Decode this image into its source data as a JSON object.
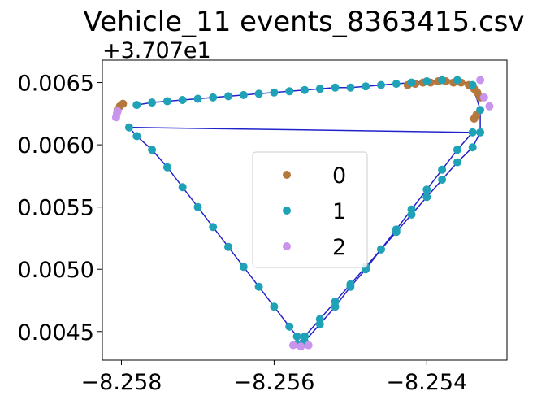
{
  "chart_data": {
    "type": "scatter",
    "title": "Vehicle_11 events_8363415.csv",
    "y_offset_label": "+3.707e1",
    "xlim": [
      -8.25825,
      -8.25295
    ],
    "ylim": [
      0.00427,
      0.00668
    ],
    "x_ticks": [
      {
        "value": -8.258,
        "label": "−8.258"
      },
      {
        "value": -8.256,
        "label": "−8.256"
      },
      {
        "value": -8.254,
        "label": "−8.254"
      }
    ],
    "y_ticks": [
      {
        "value": 0.0045,
        "label": "0.0045"
      },
      {
        "value": 0.005,
        "label": "0.0050"
      },
      {
        "value": 0.0055,
        "label": "0.0055"
      },
      {
        "value": 0.006,
        "label": "0.0060"
      },
      {
        "value": 0.0065,
        "label": "0.0065"
      }
    ],
    "legend": {
      "placement": "center",
      "entries": [
        "0",
        "1",
        "2"
      ]
    },
    "grid": false,
    "track_color": "#2222cc",
    "series": [
      {
        "name": "0",
        "color": "#b5783c",
        "points": [
          [
            -8.25805,
            0.00628
          ],
          [
            -8.25802,
            0.00631
          ],
          [
            -8.25798,
            0.00633
          ],
          [
            -8.25425,
            0.00648
          ],
          [
            -8.25415,
            0.00649
          ],
          [
            -8.25405,
            0.0065
          ],
          [
            -8.25395,
            0.0065
          ],
          [
            -8.25385,
            0.00651
          ],
          [
            -8.25375,
            0.00651
          ],
          [
            -8.25365,
            0.0065
          ],
          [
            -8.25355,
            0.0065
          ],
          [
            -8.25345,
            0.00648
          ],
          [
            -8.25338,
            0.00645
          ],
          [
            -8.25334,
            0.00642
          ],
          [
            -8.2533,
            0.00638
          ],
          [
            -8.25335,
            0.00624
          ],
          [
            -8.25338,
            0.00621
          ]
        ]
      },
      {
        "name": "1",
        "color": "#1fa2b8",
        "points": [
          [
            -8.2578,
            0.00632
          ],
          [
            -8.2576,
            0.00634
          ],
          [
            -8.2574,
            0.00635
          ],
          [
            -8.2572,
            0.00636
          ],
          [
            -8.257,
            0.00637
          ],
          [
            -8.2568,
            0.00638
          ],
          [
            -8.2566,
            0.00639
          ],
          [
            -8.2564,
            0.0064
          ],
          [
            -8.2562,
            0.00641
          ],
          [
            -8.256,
            0.00642
          ],
          [
            -8.2558,
            0.00643
          ],
          [
            -8.2556,
            0.00644
          ],
          [
            -8.2554,
            0.00645
          ],
          [
            -8.2552,
            0.00646
          ],
          [
            -8.255,
            0.00646
          ],
          [
            -8.2548,
            0.00647
          ],
          [
            -8.2546,
            0.00648
          ],
          [
            -8.2544,
            0.00649
          ],
          [
            -8.2542,
            0.0065
          ],
          [
            -8.254,
            0.00651
          ],
          [
            -8.2538,
            0.00652
          ],
          [
            -8.2536,
            0.00652
          ],
          [
            -8.2534,
            0.00648
          ],
          [
            -8.2533,
            0.00628
          ],
          [
            -8.2533,
            0.0061
          ],
          [
            -8.2534,
            0.00598
          ],
          [
            -8.2536,
            0.00586
          ],
          [
            -8.2538,
            0.00572
          ],
          [
            -8.254,
            0.00558
          ],
          [
            -8.2542,
            0.00544
          ],
          [
            -8.2544,
            0.0053
          ],
          [
            -8.2546,
            0.00516
          ],
          [
            -8.2548,
            0.00502
          ],
          [
            -8.255,
            0.00488
          ],
          [
            -8.2552,
            0.00474
          ],
          [
            -8.2554,
            0.0046
          ],
          [
            -8.2556,
            0.00446
          ],
          [
            -8.2557,
            0.0044
          ],
          [
            -8.2556,
            0.00442
          ],
          [
            -8.2554,
            0.00456
          ],
          [
            -8.2552,
            0.0047
          ],
          [
            -8.255,
            0.00486
          ],
          [
            -8.2548,
            0.005
          ],
          [
            -8.2546,
            0.00516
          ],
          [
            -8.2544,
            0.00532
          ],
          [
            -8.2542,
            0.00548
          ],
          [
            -8.254,
            0.00564
          ],
          [
            -8.2538,
            0.0058
          ],
          [
            -8.2536,
            0.00596
          ],
          [
            -8.2534,
            0.0061
          ],
          [
            -8.2579,
            0.00614
          ],
          [
            -8.2578,
            0.00607
          ],
          [
            -8.2576,
            0.00596
          ],
          [
            -8.2574,
            0.00582
          ],
          [
            -8.2572,
            0.00566
          ],
          [
            -8.257,
            0.0055
          ],
          [
            -8.2568,
            0.00534
          ],
          [
            -8.2566,
            0.00518
          ],
          [
            -8.2564,
            0.00502
          ],
          [
            -8.2562,
            0.00486
          ],
          [
            -8.256,
            0.0047
          ],
          [
            -8.2558,
            0.00454
          ],
          [
            -8.2557,
            0.00446
          ]
        ]
      },
      {
        "name": "2",
        "color": "#c994ee",
        "points": [
          [
            -8.25807,
            0.00622
          ],
          [
            -8.25806,
            0.00625
          ],
          [
            -8.25805,
            0.00627
          ],
          [
            -8.25575,
            0.00439
          ],
          [
            -8.25565,
            0.00438
          ],
          [
            -8.25555,
            0.00439
          ],
          [
            -8.2533,
            0.00652
          ],
          [
            -8.25325,
            0.00638
          ],
          [
            -8.25318,
            0.00631
          ]
        ]
      }
    ]
  }
}
